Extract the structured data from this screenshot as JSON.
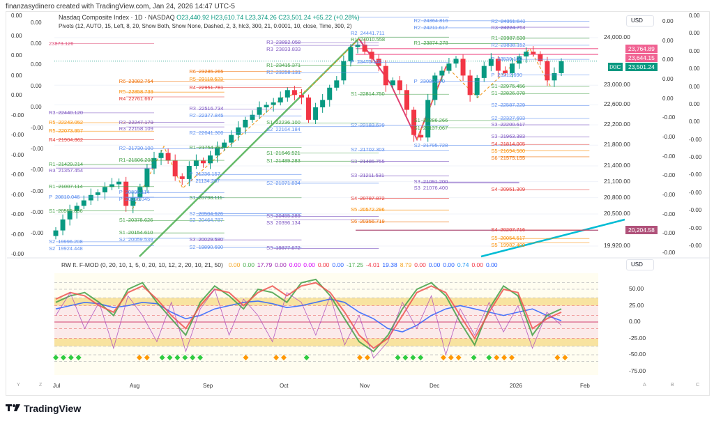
{
  "caption": "finanzasydinero created with TradingView.com, Jan 24, 2026 14:47 UTC-5",
  "symbol": {
    "title": "Nasdaq Composite Index · 1D · NASDAQ",
    "o": "O23,440.92",
    "h": "H23,610.74",
    "l": "L23,374.26",
    "c": "C23,501.24",
    "chg": "+65.22 (+0.28%)",
    "ticker": "IXIC"
  },
  "pivots_legend": "Pivots (12, AUTO, 15, Left, 8, 20, Show Both, Show None, Dashed, 2, 3, hlc3, 300, 21, 0.0001, 10, close, Time, 300, 2)",
  "indicator": {
    "name": "RW ft. F-MOD (0, 20, 10, 1, 5, 0, 20, 10, 12, 2, 20, 10, 21, 50)",
    "values": [
      {
        "v": "0.00",
        "c": "#f5a623"
      },
      {
        "v": "0.00",
        "c": "#4caf50"
      },
      {
        "v": "17.79",
        "c": "#9c27b0"
      },
      {
        "v": "0.00",
        "c": "#9c27b0"
      },
      {
        "v": "0.00",
        "c": "#d500f9"
      },
      {
        "v": "0.00",
        "c": "#d500f9"
      },
      {
        "v": "0.00",
        "c": "#f23645"
      },
      {
        "v": "0.00",
        "c": "#2962ff"
      },
      {
        "v": "-17.25",
        "c": "#4caf50"
      },
      {
        "v": "-4.01",
        "c": "#f23645"
      },
      {
        "v": "19.38",
        "c": "#2962ff"
      },
      {
        "v": "8.79",
        "c": "#f5a623"
      },
      {
        "v": "0.00",
        "c": "#f23645"
      },
      {
        "v": "0.00",
        "c": "#2962ff"
      },
      {
        "v": "0.00",
        "c": "#2962ff"
      },
      {
        "v": "0.74",
        "c": "#2196f3"
      },
      {
        "v": "0.00",
        "c": "#f23645"
      },
      {
        "v": "0.00",
        "c": "#2962ff"
      }
    ]
  },
  "currency": "USD",
  "left_scale_1": [
    "0.00",
    "0.00",
    "0.00",
    "0.00",
    "0.00",
    "-0.00",
    "-0.00",
    "-0.00",
    "-0.00",
    "-0.00",
    "-0.00",
    "-0.00",
    "-0.00"
  ],
  "left_scale_2": [
    "0.00",
    "0.00",
    "0.00",
    "0.00",
    "0.00",
    "-0.00",
    "-0.00",
    "-0.00",
    "-0.00",
    "-0.00",
    "-0.00"
  ],
  "right_scale_1": [
    "0.00",
    "0.00",
    "0.00",
    "0.00",
    "0.00",
    "-0.00",
    "-0.00",
    "-0.00",
    "-0.00",
    "-0.00",
    "-0.00",
    "-0.00",
    "-0.00"
  ],
  "right_scale_2": [
    "0.00",
    "0.00",
    "0.00",
    "0.00",
    "0.00",
    "0.00",
    "0.00",
    "-0.00",
    "-0.00",
    "-0.00",
    "-0.00",
    "-0.00",
    "-0.00",
    "-0.00"
  ],
  "price_tags": [
    {
      "v": "23,764.89",
      "p": 23764.89,
      "c": "#f06292"
    },
    {
      "v": "23,644.15",
      "p": 23644.15,
      "c": "#f06292"
    },
    {
      "v": "23,501.24",
      "p": 23501.24,
      "c": "#089981"
    },
    {
      "v": "20,204.58",
      "p": 20204.58,
      "c": "#b0527a"
    }
  ],
  "time_labels": [
    "Jul",
    "Aug",
    "Sep",
    "Oct",
    "Nov",
    "Dec",
    "2026",
    "Feb"
  ],
  "scale_letters": [
    "Y",
    "Z",
    "A",
    "B",
    "C"
  ],
  "brand": "TradingView",
  "chart_data": {
    "type": "candlestick",
    "title": "Nasdaq Composite Index · 1D · NASDAQ",
    "yscale": "log",
    "ylim": [
      19800,
      24500
    ],
    "y_ticks": [
      24000,
      23000,
      22600,
      22200,
      21800,
      21400,
      21100,
      20800,
      20500,
      19920
    ],
    "closes": [
      20200,
      20400,
      20550,
      20650,
      20750,
      20850,
      20900,
      21000,
      21050,
      21100,
      20650,
      20800,
      21000,
      21350,
      21550,
      21650,
      21500,
      21200,
      21150,
      21400,
      21500,
      21450,
      21600,
      21750,
      21850,
      22000,
      22150,
      22300,
      22400,
      22550,
      22600,
      22650,
      22750,
      22900,
      22800,
      22750,
      22300,
      22550,
      22700,
      22950,
      23100,
      23500,
      23800,
      23850,
      23700,
      23550,
      23400,
      23000,
      23100,
      22900,
      22500,
      22000,
      21950,
      22700,
      23200,
      23300,
      23450,
      23550,
      23200,
      22800,
      23150,
      23400,
      23550,
      23300,
      23250,
      23450,
      23600,
      23700,
      23650,
      23500,
      23100,
      23250,
      23501.24
    ],
    "pivot_periods": [
      {
        "start": 0,
        "end": 14,
        "levels": [
          [
            "R",
            23873.126
          ],
          [
            "R3",
            22440.12
          ],
          [
            "R5",
            22243.052
          ],
          [
            "R5",
            22073.957
          ],
          [
            "R4",
            21904.862
          ],
          [
            "R1",
            21429.214
          ],
          [
            "R3",
            21357.454
          ],
          [
            "R1",
            21007.114
          ],
          [
            "P",
            20810.046
          ],
          [
            "S1",
            20555.856
          ],
          [
            "S2",
            19996.208
          ],
          [
            "S2",
            19924.448
          ]
        ]
      },
      {
        "start": 10,
        "end": 24,
        "levels": [
          [
            "R6",
            23082.754
          ],
          [
            "R5",
            22858.739
          ],
          [
            "R4",
            22761.667
          ],
          [
            "R3",
            22247.179
          ],
          [
            "R3",
            22158.109
          ],
          [
            "R2",
            21730.1
          ],
          [
            "R1",
            21506.2
          ],
          [
            "P",
            20895.114
          ],
          [
            "P",
            20806.045
          ],
          [
            "S1",
            20378.626
          ],
          [
            "S1",
            20154.61
          ],
          [
            "S2",
            20059.539
          ]
        ]
      },
      {
        "start": 20,
        "end": 35,
        "levels": [
          [
            "R6",
            23285.265
          ],
          [
            "R5",
            23118.523
          ],
          [
            "R4",
            22951.781
          ],
          [
            "R3",
            22516.734
          ],
          [
            "R2",
            22377.845
          ],
          [
            "R2",
            22041.3
          ],
          [
            "R1",
            21754.384
          ],
          [
            "P",
            21236.157
          ],
          [
            "P",
            21134.267
          ],
          [
            "S1",
            20798.111
          ],
          [
            "S2",
            20504.626
          ],
          [
            "S2",
            20464.787
          ],
          [
            "S3",
            20029.58
          ],
          [
            "S2",
            19890.69
          ]
        ]
      },
      {
        "start": 31,
        "end": 46,
        "levels": [
          [
            "R3",
            23892.058
          ],
          [
            "R3",
            23833.833
          ],
          [
            "R1",
            23415.371
          ],
          [
            "R2",
            23258.131
          ],
          [
            "S1",
            22236.1
          ],
          [
            "S2",
            22164.184
          ],
          [
            "S1",
            21646.521
          ],
          [
            "S1",
            21489.283
          ],
          [
            "S2",
            21071.834
          ],
          [
            "S3",
            20455.289
          ],
          [
            "S3",
            20396.134
          ],
          [
            "S3",
            19877.672
          ]
        ]
      },
      {
        "start": 43,
        "end": 56,
        "levels": [
          [
            "R2",
            24441.711
          ],
          [
            "R1",
            24010.558
          ],
          [
            "P",
            23475.1
          ],
          [
            "S1",
            22814.75
          ],
          [
            "S2",
            22183.639
          ],
          [
            "S2",
            21702.303
          ],
          [
            "S3",
            21485.755
          ],
          [
            "S3",
            21211.531
          ],
          [
            "S4",
            20787.872
          ],
          [
            "S5",
            20572.296
          ],
          [
            "S6",
            20356.719
          ]
        ]
      },
      {
        "start": 52,
        "end": 66,
        "levels": [
          [
            "R2",
            24364.816
          ],
          [
            "R2",
            24211.617
          ],
          [
            "R1",
            23874.278
          ],
          [
            "P",
            23080.97
          ],
          [
            "S1",
            22286.266
          ],
          [
            "S1",
            22137.067
          ],
          [
            "S2",
            21795.728
          ],
          [
            "S3",
            21091.2
          ],
          [
            "S3",
            21076.4
          ]
        ]
      },
      {
        "start": 63,
        "end": 76,
        "levels": [
          [
            "R2",
            24351.84
          ],
          [
            "R3",
            24224.764
          ],
          [
            "R1",
            23987.53
          ],
          [
            "R2",
            23838.152
          ],
          [
            "P",
            23539.1
          ],
          [
            "P",
            23212.69
          ],
          [
            "S1",
            22975.456
          ],
          [
            "S1",
            22826.078
          ],
          [
            "S2",
            22587.229
          ],
          [
            "S2",
            22327.693
          ],
          [
            "S3",
            22200.617
          ],
          [
            "S3",
            21963.383
          ],
          [
            "S4",
            21814.005
          ],
          [
            "S5",
            21694.58
          ],
          [
            "S6",
            21575.155
          ],
          [
            "S4",
            20951.309
          ],
          [
            "S4",
            20207.716
          ],
          [
            "S5",
            20054.517
          ],
          [
            "S5",
            19982.4
          ]
        ]
      }
    ],
    "indicator": {
      "ylim": [
        -80,
        70
      ],
      "y_ticks": [
        50,
        25,
        0,
        -25,
        -50,
        -75
      ],
      "series": [
        {
          "name": "blue",
          "color": "#2962ff",
          "values": [
            20,
            25,
            30,
            28,
            22,
            25,
            30,
            28,
            15,
            5,
            10,
            20,
            25,
            30,
            32,
            28,
            22,
            25,
            30,
            35,
            30,
            15,
            5,
            -10,
            -15,
            -5,
            10,
            20,
            25,
            20,
            15,
            10,
            15,
            20,
            10,
            2
          ]
        },
        {
          "name": "green",
          "color": "#43a047",
          "values": [
            30,
            40,
            45,
            30,
            10,
            50,
            60,
            30,
            5,
            -20,
            30,
            55,
            40,
            20,
            50,
            45,
            30,
            60,
            65,
            40,
            5,
            -30,
            -45,
            -20,
            20,
            50,
            60,
            40,
            0,
            -35,
            20,
            55,
            40,
            -20,
            10,
            20
          ]
        },
        {
          "name": "red",
          "color": "#ef5350",
          "values": [
            35,
            45,
            40,
            25,
            15,
            45,
            55,
            35,
            10,
            -10,
            25,
            50,
            45,
            25,
            45,
            55,
            40,
            55,
            60,
            45,
            15,
            -20,
            -40,
            -25,
            10,
            45,
            55,
            45,
            10,
            -25,
            15,
            50,
            45,
            -10,
            5,
            15
          ]
        },
        {
          "name": "purple",
          "color": "#ab47bc",
          "values": [
            10,
            45,
            -10,
            30,
            -40,
            40,
            10,
            -30,
            30,
            -45,
            20,
            50,
            -20,
            35,
            10,
            -30,
            45,
            30,
            -20,
            40,
            -35,
            10,
            -55,
            -30,
            30,
            -10,
            40,
            -50,
            20,
            -20,
            30,
            -15,
            25,
            -40,
            15,
            -5
          ]
        }
      ],
      "markers": [
        {
          "i": 0,
          "c": "g"
        },
        {
          "i": 1,
          "c": "g"
        },
        {
          "i": 2,
          "c": "g"
        },
        {
          "i": 3,
          "c": "g"
        },
        {
          "i": 11,
          "c": "o"
        },
        {
          "i": 12,
          "c": "o"
        },
        {
          "i": 14,
          "c": "g"
        },
        {
          "i": 15,
          "c": "g"
        },
        {
          "i": 16,
          "c": "g"
        },
        {
          "i": 17,
          "c": "g"
        },
        {
          "i": 18,
          "c": "g"
        },
        {
          "i": 19,
          "c": "g"
        },
        {
          "i": 25,
          "c": "o"
        },
        {
          "i": 29,
          "c": "o"
        },
        {
          "i": 30,
          "c": "o"
        },
        {
          "i": 33,
          "c": "g"
        },
        {
          "i": 40,
          "c": "o"
        },
        {
          "i": 41,
          "c": "o"
        },
        {
          "i": 45,
          "c": "g"
        },
        {
          "i": 46,
          "c": "g"
        },
        {
          "i": 47,
          "c": "g"
        },
        {
          "i": 48,
          "c": "g"
        },
        {
          "i": 51,
          "c": "o"
        },
        {
          "i": 52,
          "c": "o"
        },
        {
          "i": 53,
          "c": "o"
        },
        {
          "i": 55,
          "c": "g"
        },
        {
          "i": 57,
          "c": "g"
        },
        {
          "i": 58,
          "c": "o"
        },
        {
          "i": 59,
          "c": "o"
        },
        {
          "i": 60,
          "c": "o"
        },
        {
          "i": 66,
          "c": "o"
        },
        {
          "i": 67,
          "c": "o"
        }
      ]
    }
  }
}
